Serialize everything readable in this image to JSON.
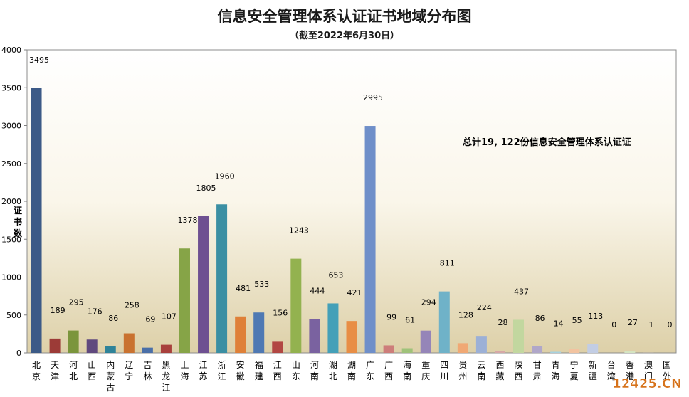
{
  "chart_data": {
    "type": "bar",
    "title": "信息安全管理体系认证证书地域分布图",
    "subtitle": "（截至2022年6月30日）",
    "ylabel": "证书数",
    "xlabel": "",
    "ylim": [
      0,
      4000
    ],
    "yticks": [
      0,
      500,
      1000,
      1500,
      2000,
      2500,
      3000,
      3500,
      4000
    ],
    "grid": false,
    "annotation": "总计19, 122份信息安全管理体系认证证",
    "categories": [
      "北京",
      "天津",
      "河北",
      "山西",
      "内蒙古",
      "辽宁",
      "吉林",
      "黑龙江",
      "上海",
      "江苏",
      "浙江",
      "安徽",
      "福建",
      "江西",
      "山东",
      "河南",
      "湖北",
      "湖南",
      "广东",
      "广西",
      "海南",
      "重庆",
      "四川",
      "贵州",
      "云南",
      "西藏",
      "陕西",
      "甘肃",
      "青海",
      "宁夏",
      "新疆",
      "台湾",
      "香港",
      "澳门",
      "国外"
    ],
    "values": [
      3495,
      189,
      295,
      176,
      86,
      258,
      69,
      107,
      1378,
      1805,
      1960,
      481,
      533,
      156,
      1243,
      444,
      653,
      421,
      2995,
      99,
      61,
      294,
      811,
      128,
      224,
      28,
      437,
      86,
      14,
      55,
      113,
      0,
      27,
      1,
      0
    ],
    "colors": [
      "#3c5a87",
      "#9c3b37",
      "#7b953c",
      "#60497e",
      "#2f8399",
      "#c97230",
      "#4a6fa8",
      "#a8403c",
      "#86a447",
      "#6e5091",
      "#3b8fa3",
      "#df8038",
      "#4f79b3",
      "#b24743",
      "#93b24f",
      "#7a62a0",
      "#44a0b8",
      "#e88e45",
      "#6f8fc9",
      "#cd7d7a",
      "#9fc27a",
      "#9585b8",
      "#6fb2c8",
      "#f0a874",
      "#9cb0d6",
      "#d6a8a6",
      "#c2d79f",
      "#b0a7c9",
      "#a6d1df",
      "#f2c3a0",
      "#c2cde4",
      "#e3c7c6",
      "#d4e4c1",
      "#cfc8df",
      "#c7e3ec"
    ]
  },
  "watermark": "12425.CN"
}
